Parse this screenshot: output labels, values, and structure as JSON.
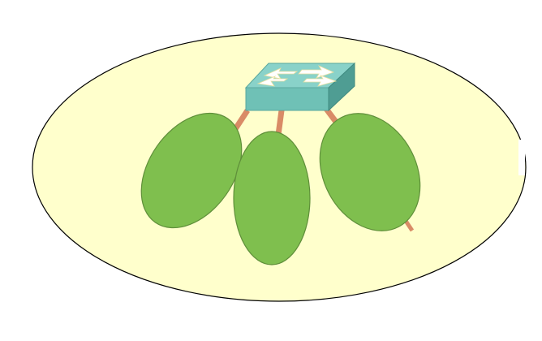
{
  "diagram": {
    "colors": {
      "background": "#ffffff",
      "domain_fill": "#ffffcc",
      "domain_stroke": "#000000",
      "link": "#d98b66",
      "segment_fill": "#7fbf4e",
      "segment_stroke": "#5f8f3a",
      "switch_top": "#89d2c9",
      "switch_front": "#6fc1b6",
      "switch_side": "#4f9d93",
      "switch_arrow": "#ffffff",
      "switch_arrow_outline": "#e8e0a0"
    },
    "nodes": [
      {
        "id": "switch",
        "icon": "network-switch-icon"
      },
      {
        "id": "segment-left",
        "icon": "segment-icon"
      },
      {
        "id": "segment-center",
        "icon": "segment-icon"
      },
      {
        "id": "segment-right",
        "icon": "segment-icon"
      }
    ],
    "edges": [
      {
        "from": "switch",
        "to": "segment-left"
      },
      {
        "from": "switch",
        "to": "segment-center"
      },
      {
        "from": "switch",
        "to": "segment-right"
      }
    ]
  }
}
